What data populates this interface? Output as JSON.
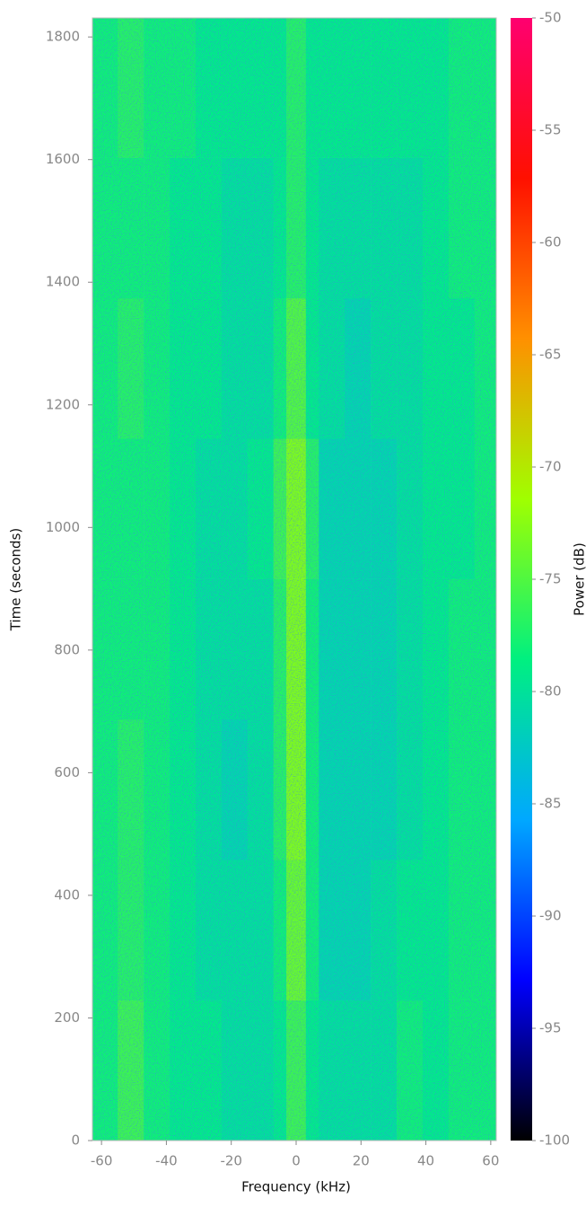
{
  "chart_data": {
    "type": "spectrogram",
    "xlabel": "Frequency (kHz)",
    "ylabel": "Time (seconds)",
    "colorbar_label": "Power (dB)",
    "xlim": [
      -62.8,
      61.7
    ],
    "xticks": [
      -60,
      -40,
      -20,
      0,
      20,
      40,
      60
    ],
    "ylim": [
      0,
      1831
    ],
    "yticks": [
      0,
      200,
      400,
      600,
      800,
      1000,
      1200,
      1400,
      1600,
      1800
    ],
    "zlim": [
      -100,
      -50
    ],
    "zticks": [
      -100,
      -95,
      -90,
      -85,
      -80,
      -75,
      -70,
      -65,
      -60,
      -55,
      -50
    ],
    "colormap": [
      "#000000",
      "#0000ff",
      "#00a8ff",
      "#00f080",
      "#a0ff00",
      "#ff9000",
      "#ff1000",
      "#ff0070"
    ],
    "xbins": [
      -62.8,
      -55,
      -47,
      -39,
      -31,
      -23,
      -15,
      -7,
      -3,
      3,
      7,
      15,
      23,
      31,
      39,
      47,
      55,
      61.7
    ],
    "ybins": [
      0,
      229,
      458,
      687,
      916,
      1145,
      1374,
      1603,
      1831
    ],
    "z": [
      [
        -78,
        -76,
        -78,
        -79,
        -79,
        -80,
        -80,
        -79,
        -76,
        -79,
        -80,
        -80,
        -80,
        -78,
        -79,
        -78,
        -78
      ],
      [
        -78,
        -77,
        -78,
        -79,
        -80,
        -80,
        -80,
        -78,
        -74,
        -78,
        -81,
        -81,
        -80,
        -79,
        -79,
        -78,
        -78
      ],
      [
        -78,
        -77,
        -78,
        -79,
        -80,
        -81,
        -80,
        -77,
        -73,
        -78,
        -81,
        -81,
        -81,
        -80,
        -79,
        -78,
        -78
      ],
      [
        -78,
        -78,
        -78,
        -79,
        -80,
        -80,
        -80,
        -77,
        -73,
        -78,
        -81,
        -81,
        -81,
        -80,
        -79,
        -78,
        -78
      ],
      [
        -78,
        -78,
        -78,
        -79,
        -80,
        -80,
        -79,
        -76,
        -73,
        -77,
        -81,
        -81,
        -81,
        -80,
        -79,
        -79,
        -78
      ],
      [
        -78,
        -77,
        -78,
        -79,
        -79,
        -80,
        -80,
        -78,
        -75,
        -79,
        -80,
        -81,
        -80,
        -80,
        -79,
        -79,
        -78
      ],
      [
        -78,
        -78,
        -78,
        -79,
        -79,
        -80,
        -80,
        -79,
        -77,
        -79,
        -80,
        -80,
        -80,
        -80,
        -79,
        -78,
        -78
      ],
      [
        -78,
        -77,
        -78,
        -78,
        -79,
        -79,
        -79,
        -79,
        -77,
        -79,
        -79,
        -79,
        -79,
        -79,
        -79,
        -78,
        -78
      ]
    ]
  }
}
